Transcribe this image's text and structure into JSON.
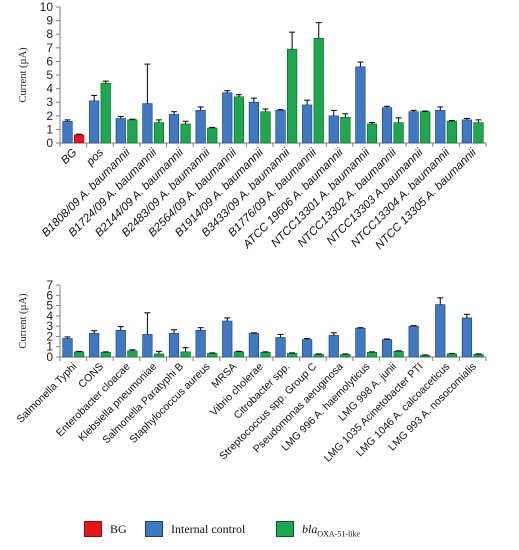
{
  "colors": {
    "bg": "#e8141c",
    "internal": "#3f78c4",
    "bla": "#1da84e",
    "axis": "#7f7f7f"
  },
  "legend": {
    "bg_label": "BG",
    "internal_label": "Internal control",
    "bla_prefix": "bla",
    "bla_sub": "OXA-51-like"
  },
  "chart_data": [
    {
      "type": "bar",
      "ylabel": "Current (µA)",
      "ylim": [
        0,
        10
      ],
      "yticks": [
        0,
        1,
        2,
        3,
        4,
        5,
        6,
        7,
        8,
        9,
        10
      ],
      "grid": false,
      "categories": [
        "BG",
        "pos",
        "B1808/09 A. baumannii",
        "B1724/09 A. baumannii",
        "B2144/09 A. baumannii",
        "B2483/09 A. baumannii",
        "B2564/09 A. baumannii",
        "B1914/09 A. baumannii",
        "B3433/09 A. baumannii",
        "B1776/09 A. baumannii",
        "ATCC 19606 A. baumannii",
        "NTCC13301 A. baumannii",
        "NTCC13302 A. baumannii",
        "NTCC13303 A.baumannii",
        "NTCC13304 A. baumannii",
        "NTCC 13305 A. baumannii"
      ],
      "series": [
        {
          "name": "Internal control",
          "values": [
            1.6,
            3.1,
            1.8,
            2.9,
            2.1,
            2.4,
            3.7,
            3.0,
            2.4,
            2.8,
            2.0,
            5.6,
            2.6,
            2.3,
            2.4,
            1.7
          ],
          "errors": [
            0.1,
            0.4,
            0.15,
            2.9,
            0.2,
            0.25,
            0.15,
            0.3,
            0.05,
            0.35,
            0.4,
            0.35,
            0.1,
            0.1,
            0.25,
            0.1
          ]
        },
        {
          "name": "blaOXA-51-like",
          "values": [
            0.6,
            4.4,
            1.7,
            1.5,
            1.4,
            1.1,
            3.4,
            2.3,
            6.9,
            7.7,
            1.9,
            1.4,
            1.5,
            2.3,
            1.6,
            1.5
          ],
          "errors": [
            0.05,
            0.15,
            0.05,
            0.2,
            0.2,
            0.05,
            0.15,
            0.2,
            1.25,
            1.15,
            0.25,
            0.1,
            0.35,
            0.05,
            0.05,
            0.2
          ]
        }
      ],
      "highlight": {
        "category": "BG",
        "series": "blaOXA-51-like",
        "legend": "BG"
      }
    },
    {
      "type": "bar",
      "ylabel": "Current (µA)",
      "ylim": [
        0,
        7
      ],
      "yticks": [
        0,
        1,
        2,
        3,
        4,
        5,
        6,
        7
      ],
      "grid": false,
      "categories": [
        "Salmonella Typhi",
        "CONS",
        "Enterobacter cloacae",
        "Klebsiella pneumoniae",
        "Salmonella Paratyphi B",
        "Staphylococcus aureus",
        "MRSA",
        "Vibrio cholerae",
        "Citrobacter spp.",
        "Streptococcus spp. Group C",
        "Pseudomonas aeruginosa",
        "LMG 996 A. haemolyticus",
        "LMG 998 A. junii",
        "LMG 1035 Acinetobacter PTI",
        "LMG 1046 A. calcoaceticus",
        "LMG 993 A. nosocomialis"
      ],
      "series": [
        {
          "name": "Internal control",
          "values": [
            1.8,
            2.3,
            2.6,
            2.2,
            2.3,
            2.6,
            3.5,
            2.3,
            1.9,
            1.7,
            2.1,
            2.8,
            1.7,
            3.0,
            5.1,
            3.8
          ],
          "errors": [
            0.15,
            0.25,
            0.35,
            2.1,
            0.35,
            0.25,
            0.3,
            0.05,
            0.3,
            0.1,
            0.25,
            0.05,
            0.05,
            0.05,
            0.65,
            0.35
          ]
        },
        {
          "name": "blaOXA-51-like",
          "values": [
            0.5,
            0.45,
            0.6,
            0.3,
            0.5,
            0.35,
            0.5,
            0.45,
            0.35,
            0.25,
            0.25,
            0.45,
            0.55,
            0.15,
            0.3,
            0.25
          ],
          "errors": [
            0.05,
            0.05,
            0.1,
            0.25,
            0.4,
            0.05,
            0.05,
            0.05,
            0.05,
            0.05,
            0.05,
            0.05,
            0.05,
            0.05,
            0.05,
            0.05
          ]
        }
      ]
    }
  ]
}
